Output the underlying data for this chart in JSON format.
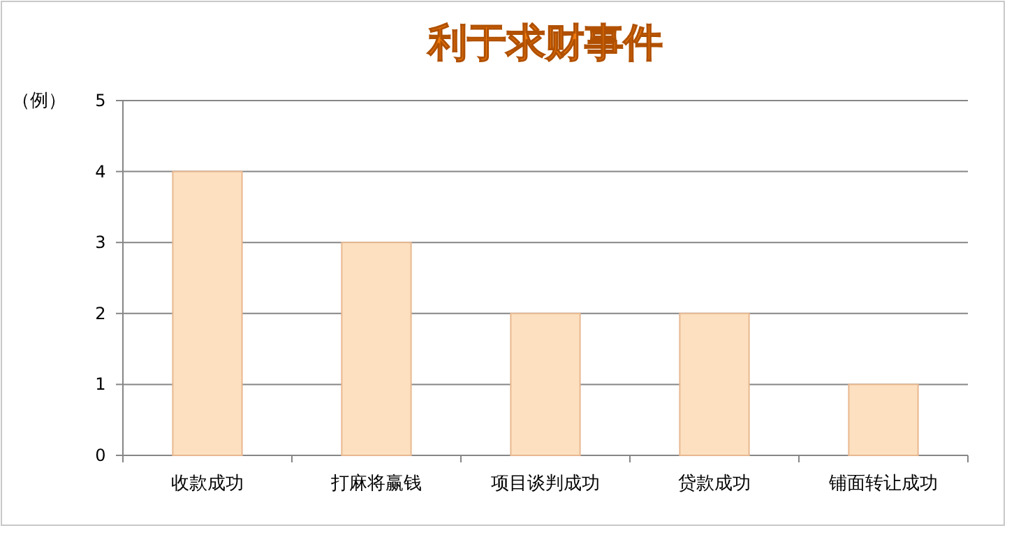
{
  "chart_data": {
    "type": "bar",
    "title": "利于求财事件",
    "ylabel": "（例）",
    "categories": [
      "收款成功",
      "打麻将赢钱",
      "项目谈判成功",
      "贷款成功",
      "铺面转让成功"
    ],
    "values": [
      4,
      3,
      2,
      2,
      1
    ],
    "color": "#fde0c0",
    "ylim": [
      0,
      5
    ],
    "yticks": [
      0,
      1,
      2,
      3,
      4,
      5
    ],
    "grid": "y"
  }
}
